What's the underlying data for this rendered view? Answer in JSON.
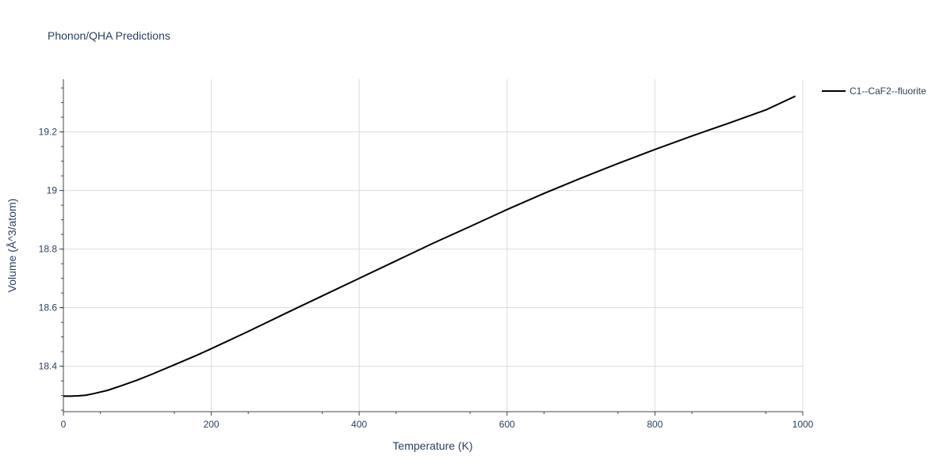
{
  "chart_data": {
    "type": "line",
    "title": "Phonon/QHA Predictions",
    "xlabel": "Temperature (K)",
    "ylabel": "Volume (Å^3/atom)",
    "xlim": [
      0,
      1000
    ],
    "ylim": [
      18.245,
      19.38
    ],
    "x_ticks": [
      0,
      200,
      400,
      600,
      800,
      1000
    ],
    "x_tick_labels": [
      "0",
      "200",
      "400",
      "600",
      "800",
      "1000"
    ],
    "y_ticks": [
      18.4,
      18.6,
      18.8,
      19.0,
      19.2
    ],
    "y_tick_labels": [
      "18.4",
      "18.6",
      "18.8",
      "19",
      "19.2"
    ],
    "grid": true,
    "legend_position": "top-right",
    "series": [
      {
        "name": "C1--CaF2--fluorite",
        "color": "#000000",
        "x": [
          0,
          10,
          20,
          30,
          40,
          60,
          80,
          100,
          120,
          150,
          180,
          200,
          250,
          300,
          350,
          400,
          450,
          500,
          550,
          600,
          650,
          700,
          750,
          800,
          850,
          900,
          950,
          990
        ],
        "y": [
          18.298,
          18.298,
          18.299,
          18.301,
          18.306,
          18.318,
          18.335,
          18.353,
          18.373,
          18.405,
          18.437,
          18.46,
          18.519,
          18.58,
          18.64,
          18.7,
          18.76,
          18.82,
          18.877,
          18.935,
          18.99,
          19.042,
          19.092,
          19.14,
          19.186,
          19.23,
          19.275,
          19.322
        ]
      }
    ]
  }
}
